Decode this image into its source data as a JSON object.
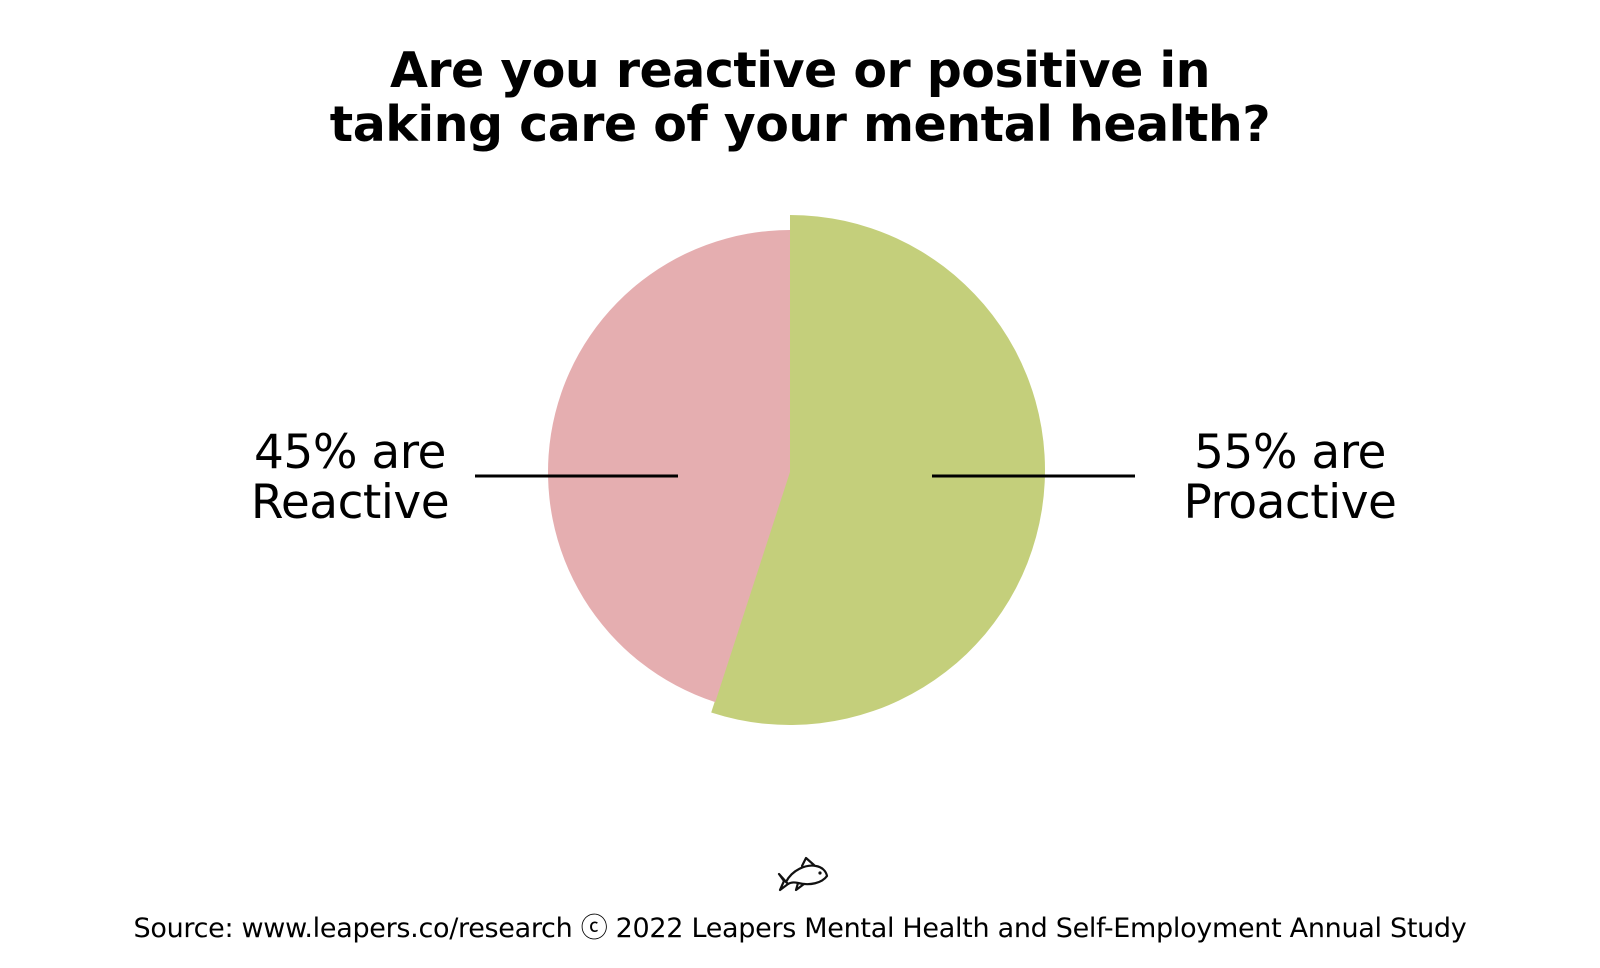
{
  "chart_data": {
    "type": "pie",
    "title": [
      "Are you reactive or positive in",
      "taking care of your mental health?"
    ],
    "slices": [
      {
        "label": "Proactive",
        "value": 55,
        "color": "#c4cf7b",
        "annotation": [
          "55% are",
          "Proactive"
        ]
      },
      {
        "label": "Reactive",
        "value": 45,
        "color": "#e5aeb0",
        "annotation": [
          "45% are",
          "Reactive"
        ]
      }
    ],
    "start": "12 o'clock",
    "direction": "clockwise",
    "legend": "none"
  },
  "footer": {
    "logo_icon": "fish-icon",
    "source": "Source: www.leapers.co/research ⓒ 2022 Leapers Mental Health and Self-Employment Annual Study"
  }
}
